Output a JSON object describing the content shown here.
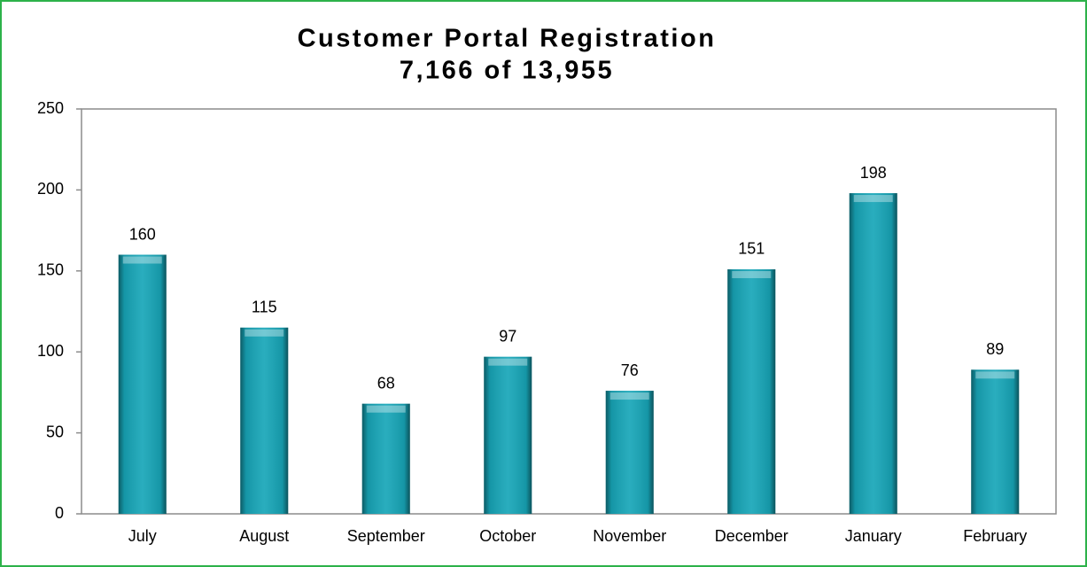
{
  "chart_data": {
    "type": "bar",
    "title": "Customer Portal Registration",
    "subtitle": "7,166 of 13,955",
    "categories": [
      "July",
      "August",
      "September",
      "October",
      "November",
      "December",
      "January",
      "February"
    ],
    "values": [
      160,
      115,
      68,
      97,
      76,
      151,
      198,
      89
    ],
    "color": "#17a6b8",
    "ylim": [
      0,
      250
    ],
    "yticks": [
      0,
      50,
      100,
      150,
      200,
      250
    ],
    "grid": false
  }
}
